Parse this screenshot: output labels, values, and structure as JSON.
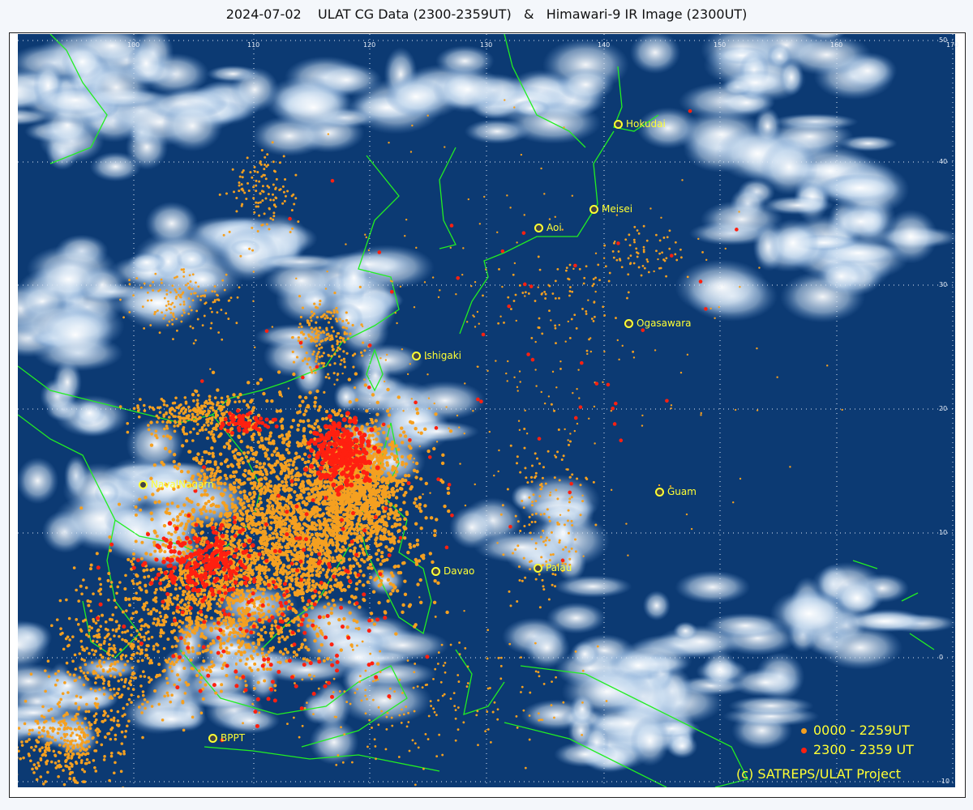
{
  "title": "2024-07-02    ULAT CG Data (2300-2359UT)   &   Himawari-9 IR Image (2300UT)",
  "longitude_ticks": [
    "100",
    "110",
    "120",
    "130",
    "140",
    "150",
    "160",
    "170"
  ],
  "latitude_ticks": [
    "50",
    "40",
    "30",
    "20",
    "10",
    "0",
    "-10"
  ],
  "stations": [
    {
      "name": "Hokudai"
    },
    {
      "name": "Meisei"
    },
    {
      "name": "Aoi"
    },
    {
      "name": "Ogasawara"
    },
    {
      "name": "Ishigaki"
    },
    {
      "name": "NavalNagarn"
    },
    {
      "name": "Davao"
    },
    {
      "name": "Palau"
    },
    {
      "name": "Guam"
    },
    {
      "name": "BPPT"
    }
  ],
  "legend": {
    "earlier": {
      "label": "0000 - 2259UT",
      "color": "#f5a020"
    },
    "recent": {
      "label": "2300 - 2359 UT",
      "color": "#ff2010"
    }
  },
  "credit": "(c) SATREPS/ULAT Project",
  "colors": {
    "ocean": "#0c3a73",
    "cloud": "#ffffff",
    "coastline": "#22ee22",
    "station": "#ffff33"
  }
}
